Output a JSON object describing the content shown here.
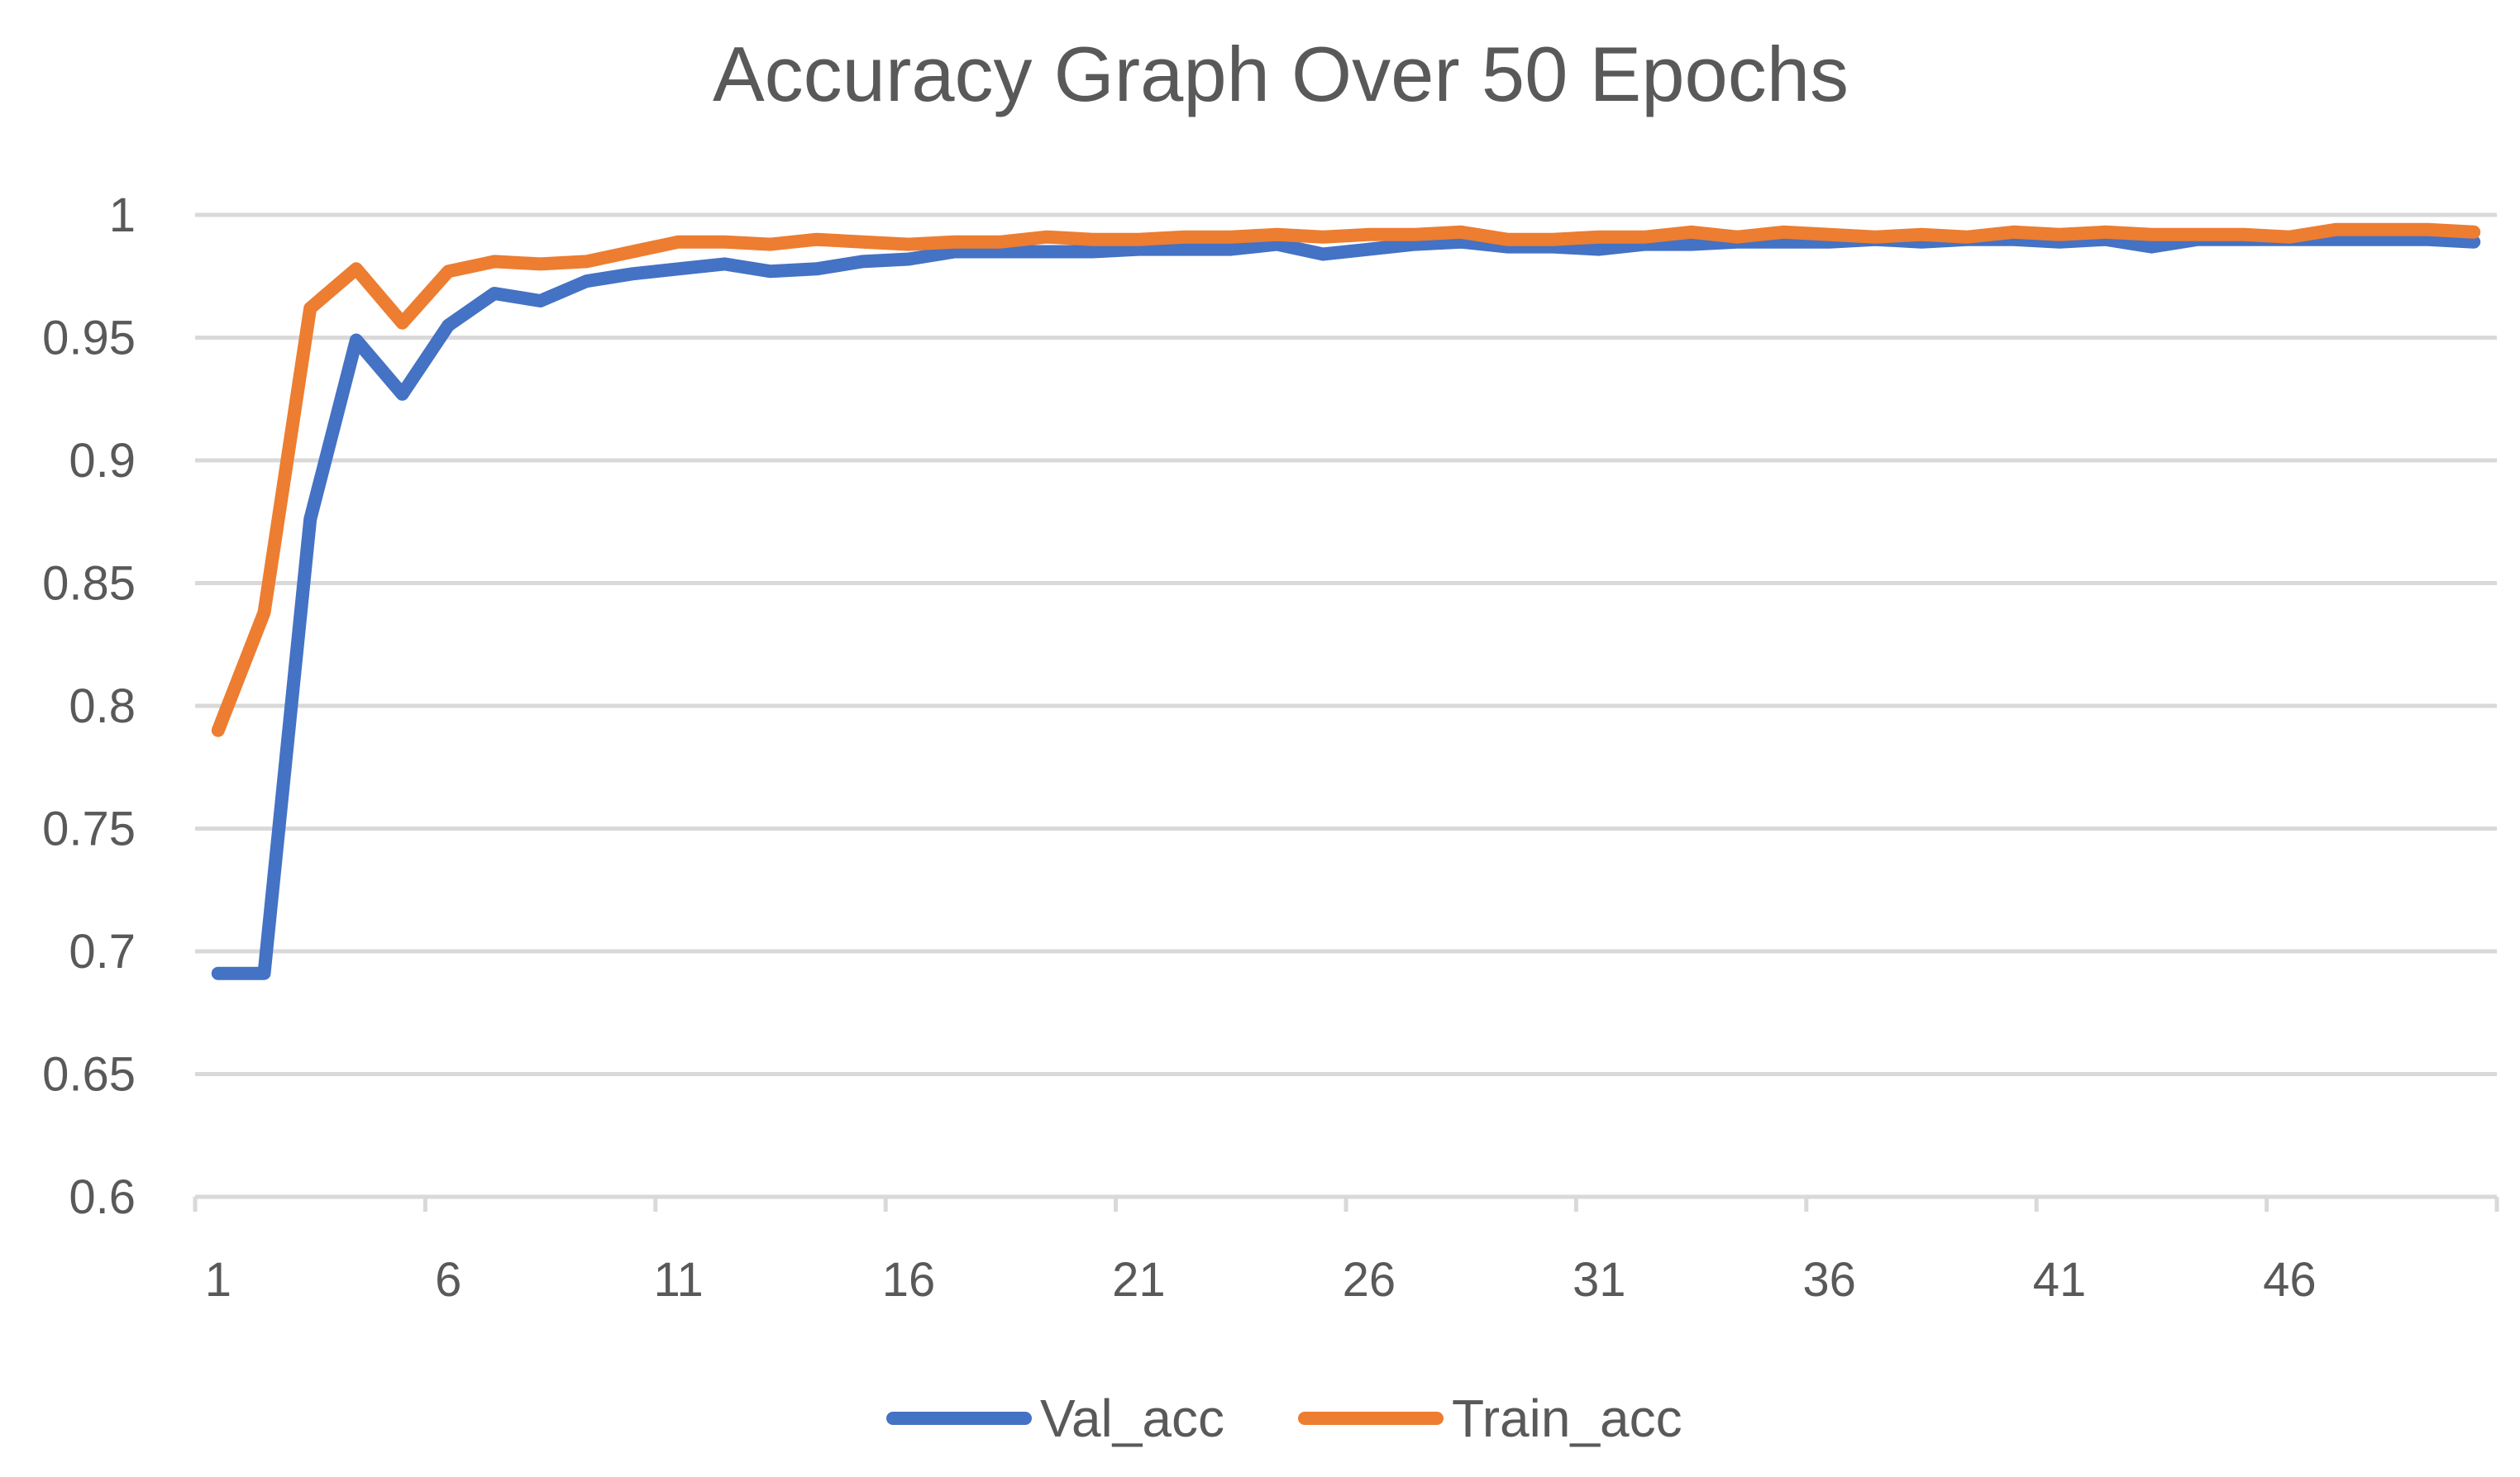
{
  "chart_data": {
    "type": "line",
    "title": "Accuracy Graph Over 50 Epochs",
    "xlabel": "",
    "ylabel": "",
    "x": [
      1,
      2,
      3,
      4,
      5,
      6,
      7,
      8,
      9,
      10,
      11,
      12,
      13,
      14,
      15,
      16,
      17,
      18,
      19,
      20,
      21,
      22,
      23,
      24,
      25,
      26,
      27,
      28,
      29,
      30,
      31,
      32,
      33,
      34,
      35,
      36,
      37,
      38,
      39,
      40,
      41,
      42,
      43,
      44,
      45,
      46,
      47,
      48,
      49,
      50
    ],
    "x_tick_values": [
      1,
      6,
      11,
      16,
      21,
      26,
      31,
      36,
      41,
      46
    ],
    "x_tick_labels": [
      "1",
      "6",
      "11",
      "16",
      "21",
      "26",
      "31",
      "36",
      "41",
      "46"
    ],
    "xlim": [
      0.5,
      50.5
    ],
    "ylim": [
      0.6,
      1.0
    ],
    "y_tick_values": [
      1.0,
      0.95,
      0.9,
      0.85,
      0.8,
      0.75,
      0.7,
      0.65,
      0.6
    ],
    "y_tick_labels": [
      "1",
      "0.95",
      "0.9",
      "0.85",
      "0.8",
      "0.75",
      "0.7",
      "0.65",
      "0.6"
    ],
    "grid": true,
    "legend_position": "bottom",
    "series": [
      {
        "name": "Val_acc",
        "color": "#4472C4",
        "values": [
          0.691,
          0.691,
          0.876,
          0.949,
          0.927,
          0.955,
          0.968,
          0.965,
          0.973,
          0.976,
          0.978,
          0.98,
          0.977,
          0.978,
          0.981,
          0.982,
          0.985,
          0.985,
          0.985,
          0.985,
          0.986,
          0.986,
          0.986,
          0.988,
          0.984,
          0.986,
          0.988,
          0.989,
          0.987,
          0.987,
          0.986,
          0.988,
          0.988,
          0.989,
          0.989,
          0.989,
          0.99,
          0.989,
          0.99,
          0.99,
          0.989,
          0.99,
          0.987,
          0.99,
          0.99,
          0.99,
          0.99,
          0.99,
          0.99,
          0.989
        ]
      },
      {
        "name": "Train_acc",
        "color": "#ED7D31",
        "values": [
          0.79,
          0.838,
          0.962,
          0.978,
          0.956,
          0.977,
          0.981,
          0.98,
          0.981,
          0.985,
          0.989,
          0.989,
          0.988,
          0.99,
          0.989,
          0.988,
          0.989,
          0.989,
          0.991,
          0.99,
          0.99,
          0.991,
          0.991,
          0.992,
          0.991,
          0.992,
          0.992,
          0.993,
          0.99,
          0.99,
          0.991,
          0.991,
          0.993,
          0.991,
          0.993,
          0.992,
          0.991,
          0.992,
          0.991,
          0.993,
          0.992,
          0.993,
          0.992,
          0.992,
          0.992,
          0.991,
          0.994,
          0.994,
          0.994,
          0.993
        ]
      }
    ]
  }
}
